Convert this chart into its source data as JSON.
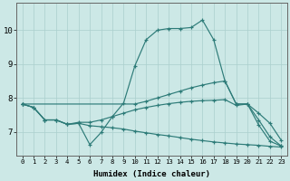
{
  "xlabel": "Humidex (Indice chaleur)",
  "bg_color": "#cce8e6",
  "line_color": "#2d7b78",
  "grid_color": "#aacfcd",
  "xlim": [
    -0.5,
    23.5
  ],
  "ylim": [
    6.3,
    10.8
  ],
  "xticks": [
    0,
    1,
    2,
    3,
    4,
    5,
    6,
    7,
    8,
    9,
    10,
    11,
    12,
    13,
    14,
    15,
    16,
    17,
    18,
    19,
    20,
    21,
    22,
    23
  ],
  "yticks": [
    7,
    8,
    9,
    10
  ],
  "series": [
    {
      "x": [
        0,
        1,
        2,
        3,
        4,
        5,
        6,
        7,
        8,
        9,
        10,
        11,
        12,
        13,
        14,
        15,
        16,
        17,
        18,
        19,
        20,
        21,
        22,
        23
      ],
      "y": [
        7.82,
        7.72,
        7.35,
        7.35,
        7.22,
        7.25,
        6.62,
        6.98,
        7.45,
        7.85,
        8.95,
        9.72,
        10.0,
        10.05,
        10.05,
        10.08,
        10.3,
        9.72,
        8.5,
        7.82,
        7.82,
        7.2,
        6.72,
        6.58
      ]
    },
    {
      "x": [
        0,
        10,
        11,
        12,
        13,
        14,
        15,
        16,
        17,
        18,
        19,
        20,
        21,
        22,
        23
      ],
      "y": [
        7.82,
        7.82,
        7.9,
        8.0,
        8.1,
        8.2,
        8.3,
        8.38,
        8.45,
        8.5,
        7.82,
        7.82,
        7.35,
        6.85,
        6.58
      ]
    },
    {
      "x": [
        0,
        1,
        2,
        3,
        4,
        5,
        6,
        7,
        8,
        9,
        10,
        11,
        12,
        13,
        14,
        15,
        16,
        17,
        18,
        19,
        20,
        21,
        22,
        23
      ],
      "y": [
        7.82,
        7.72,
        7.35,
        7.35,
        7.22,
        7.28,
        7.28,
        7.35,
        7.45,
        7.55,
        7.65,
        7.72,
        7.78,
        7.83,
        7.87,
        7.9,
        7.92,
        7.93,
        7.95,
        7.78,
        7.82,
        7.55,
        7.25,
        6.75
      ]
    },
    {
      "x": [
        0,
        1,
        2,
        3,
        4,
        5,
        6,
        7,
        8,
        9,
        10,
        11,
        12,
        13,
        14,
        15,
        16,
        17,
        18,
        19,
        20,
        21,
        22,
        23
      ],
      "y": [
        7.82,
        7.72,
        7.35,
        7.35,
        7.22,
        7.25,
        7.18,
        7.15,
        7.12,
        7.08,
        7.02,
        6.97,
        6.92,
        6.88,
        6.83,
        6.78,
        6.74,
        6.7,
        6.67,
        6.64,
        6.62,
        6.6,
        6.57,
        6.55
      ]
    }
  ]
}
